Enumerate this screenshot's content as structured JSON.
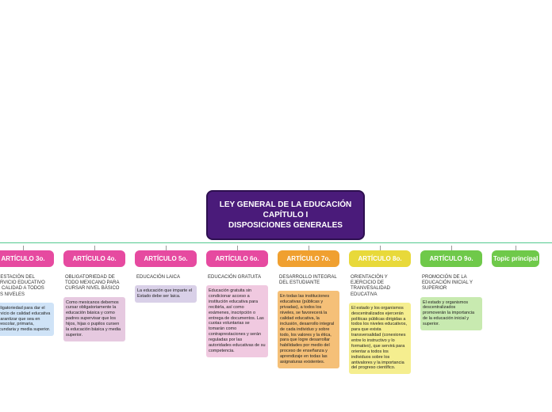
{
  "title": {
    "line1": "LEY GENERAL DE LA EDUCACIÓN",
    "line2": "CAPÍTULO I",
    "line3": "DISPOSICIONES GENERALES",
    "bg": "#4a1b7a",
    "border": "#2d0f4f"
  },
  "hline_color": "#54c98f",
  "columns": [
    {
      "label": "ARTÍCULO 3o.",
      "label_bg": "#e64aa0",
      "subtitle": "PRESTACIÓN DEL SERVICIO EDUCATIVO DE CALIDAD A TODOS LOS NIVELES",
      "desc": "Obligatoriedad para dar el servicio de calidad educativa y garantizar que sea en preescolar, primaria, secundaria y media superior.",
      "desc_bg": "#cfe3f7"
    },
    {
      "label": "ARTÍCULO 4o.",
      "label_bg": "#e64aa0",
      "subtitle": "OBLIGATORIEDAD DE TODO MEXICANO PARA CURSAR NIVEL BÁSICO",
      "desc": "Como mexicanos debemos cursar obligatoriamente la educación básica y como padres supervisar que los hijos, hijas o pupilos cursen la educación básica y media superior.",
      "desc_bg": "#e6c9e0"
    },
    {
      "label": "ARTÍCULO 5o.",
      "label_bg": "#e64aa0",
      "subtitle": "EDUCACIÓN LAICA",
      "desc": "La educación que imparte el Estado debe ser laica.",
      "desc_bg": "#d9d0e8"
    },
    {
      "label": "ARTÍCULO 6o.",
      "label_bg": "#e64aa0",
      "subtitle": "EDUCACIÓN GRATUITA",
      "desc": "Educación gratuita sin condicionar acceso a institución educativa para recibirla, así como exámenes, inscripción o entrega de documentos. Las cuotas voluntarias se tomarán como contraprestaciones y serán reguladas por las autoridades educativas de su competencia.",
      "desc_bg": "#f0c9e0"
    },
    {
      "label": "ARTÍCULO 7o.",
      "label_bg": "#f0a030",
      "subtitle": "DESARROLLO INTEGRAL DEL ESTUDIANTE",
      "desc": "En todas las instituciones educativas (públicas y privadas), a todos los niveles, se favorecerá la calidad educativa, la inclusión, desarrollo integral de cada individuo y sobre todo, los valores y la ética, para que logre desarrollar habilidades por medio del proceso de enseñanza y aprendizaje en todas las asignaturas existentes.",
      "desc_bg": "#f5c078"
    },
    {
      "label": "ARTÍCULO 8o.",
      "label_bg": "#e8d93a",
      "subtitle": "ORIENTACIÓN Y EJERCICIO DE TRANVESALIDAD EDUCATIVA",
      "desc": "El estado y los organismos descentralizados ejercerán políticas públicas dirigidas a todos los niveles educativos, para que exista transversalidad (conexiones entre lo instructivo y lo formativo), que servirá para orientar a todos los individuos sobre los antivalores y la importancia del progreso científico.",
      "desc_bg": "#f5ee8f"
    },
    {
      "label": "ARTÍCULO 9o.",
      "label_bg": "#6fc94a",
      "subtitle": "PROMOCIÓN DE LA EDUCACIÓN INICIAL Y SUPERIOR",
      "desc": "El estado y organismos descentralizados promoverán la importancia de la educación inicial y superior.",
      "desc_bg": "#c8eab0"
    },
    {
      "label": "Topic principal",
      "label_bg": "#6fc94a",
      "subtitle": "",
      "desc": "",
      "desc_bg": ""
    }
  ]
}
